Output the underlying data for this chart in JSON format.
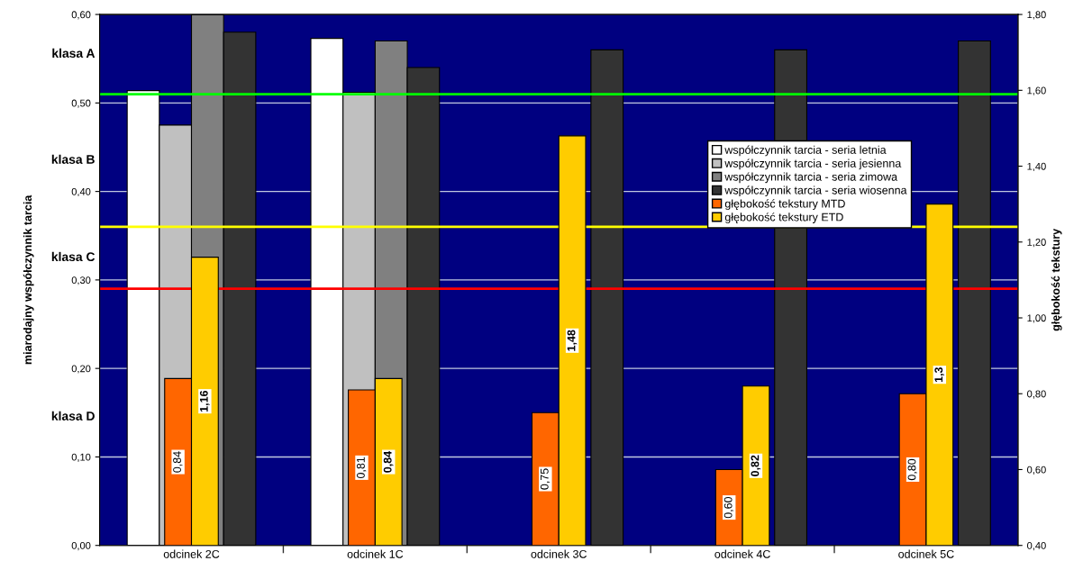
{
  "chart_data": {
    "type": "bar",
    "ylabel": "miarodajny współczynnik tarcia",
    "y2label": "głębokość tekstury",
    "categories": [
      "odcinek 2C",
      "odcinek 1C",
      "odcinek 3C",
      "odcinek 4C",
      "odcinek 5C"
    ],
    "series": [
      {
        "name": "współczynnik tarcia - seria letnia",
        "color": "#ffffff",
        "values": [
          0.514,
          0.573,
          null,
          null,
          null
        ]
      },
      {
        "name": "współczynnik tarcia - seria jesienna",
        "color": "#c0c0c0",
        "values": [
          0.475,
          0.512,
          null,
          null,
          null
        ]
      },
      {
        "name": "współczynnik tarcia - seria zimowa",
        "color": "#808080",
        "values": [
          0.6,
          0.57,
          null,
          null,
          null
        ]
      },
      {
        "name": "współczynnik tarcia - seria wiosenna",
        "color": "#333333",
        "values": [
          0.58,
          0.54,
          0.56,
          0.56,
          0.57
        ]
      },
      {
        "name": "głębokość tekstury MTD",
        "color": "#ff6600",
        "axis": "y2",
        "values": [
          0.84,
          0.81,
          0.75,
          0.6,
          0.8
        ],
        "value_labels": [
          "0,84",
          "0,81",
          "0,75",
          "0,60",
          "0,80"
        ]
      },
      {
        "name": "głębokość tekstury ETD",
        "color": "#ffcc00",
        "axis": "y2",
        "values": [
          1.16,
          0.84,
          1.48,
          0.82,
          1.3
        ],
        "value_labels": [
          "1,16",
          "0,84",
          "1,48",
          "0,82",
          "1,3"
        ]
      }
    ],
    "ylim": [
      0,
      0.6
    ],
    "yticks": [
      {
        "value": 0,
        "label": "0,00"
      },
      {
        "value": 0.1,
        "label": "0,10"
      },
      {
        "value": 0.2,
        "label": "0,20"
      },
      {
        "value": 0.3,
        "label": "0,30"
      },
      {
        "value": 0.4,
        "label": "0,40"
      },
      {
        "value": 0.5,
        "label": "0,50"
      },
      {
        "value": 0.6,
        "label": "0,60"
      }
    ],
    "y2lim": [
      0.4,
      1.8
    ],
    "y2ticks": [
      {
        "value": 0.4,
        "label": "0,40"
      },
      {
        "value": 0.6,
        "label": "0,60"
      },
      {
        "value": 0.8,
        "label": "0,80"
      },
      {
        "value": 1.0,
        "label": "1,00"
      },
      {
        "value": 1.2,
        "label": "1,20"
      },
      {
        "value": 1.4,
        "label": "1,40"
      },
      {
        "value": 1.6,
        "label": "1,60"
      },
      {
        "value": 1.8,
        "label": "1,80"
      }
    ],
    "ref_lines": [
      {
        "axis": "y",
        "value": 0.51,
        "color": "#00ff00"
      },
      {
        "axis": "y",
        "value": 0.36,
        "color": "#ffff00"
      },
      {
        "axis": "y",
        "value": 0.29,
        "color": "#ff0000"
      }
    ],
    "annotations": [
      "klasa A",
      "klasa B",
      "klasa C",
      "klasa D"
    ],
    "grid": "y",
    "legend": "right"
  }
}
